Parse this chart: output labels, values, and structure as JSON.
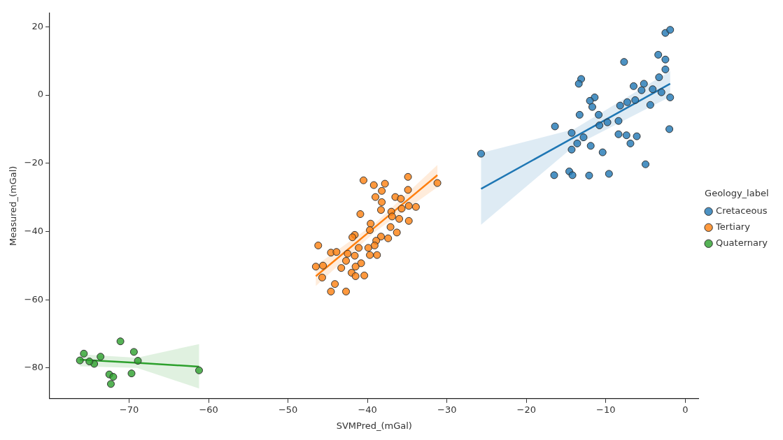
{
  "chart_data": {
    "type": "scatter",
    "xlabel": "SVMPred_(mGal)",
    "ylabel": "Measured_(mGal)",
    "legend_title": "Geology_label",
    "legend": "right",
    "grid": false,
    "marker": "circle",
    "xlim": [
      -80,
      1.7
    ],
    "xticks": [
      -70,
      -60,
      -50,
      -40,
      -30,
      -20,
      -10,
      0
    ],
    "ylim": [
      -89,
      24
    ],
    "yticks": [
      -80,
      -60,
      -40,
      -20,
      0,
      20
    ],
    "series": [
      {
        "name": "Cretaceous",
        "color": "#1f77b4",
        "x": [
          -25.7,
          -16.4,
          -16.5,
          -14.6,
          -14.2,
          -12.1,
          -9.6,
          -5.0,
          -2.0,
          -1.9,
          -7.7,
          -13.1,
          -13.4,
          -11.4,
          -12.0,
          -11.7,
          -13.3,
          -10.9,
          -14.3,
          -12.8,
          -13.6,
          -14.3,
          -11.9,
          -10.4,
          -10.8,
          -9.8,
          -8.4,
          -8.4,
          -7.4,
          -6.1,
          -6.9,
          -8.2,
          -7.3,
          -6.3,
          -4.4,
          -6.5,
          -5.2,
          -5.5,
          -4.1,
          -3.0,
          -3.3,
          -2.5,
          -3.4,
          -2.5,
          -2.5,
          -1.9
        ],
        "values": [
          -17.2,
          -9.2,
          -23.5,
          -22.4,
          -23.5,
          -23.6,
          -23.1,
          -20.3,
          -10.0,
          -0.7,
          9.7,
          4.7,
          3.3,
          -0.7,
          -1.7,
          -3.5,
          -5.8,
          -5.8,
          -11.1,
          -12.4,
          -14.2,
          -16.0,
          -14.9,
          -16.8,
          -8.9,
          -8.0,
          -7.6,
          -11.5,
          -11.8,
          -12.1,
          -14.2,
          -3.1,
          -2.1,
          -1.5,
          -2.9,
          2.6,
          3.3,
          1.4,
          1.7,
          0.8,
          5.2,
          7.5,
          11.8,
          10.4,
          18.2,
          19.1
        ]
      },
      {
        "name": "Tertiary",
        "color": "#ff7f0e",
        "x": [
          -40.5,
          -34.9,
          -39.2,
          -37.8,
          -38.2,
          -34.9,
          -31.2,
          -39.0,
          -38.2,
          -36.5,
          -35.8,
          -38.3,
          -37.0,
          -35.7,
          -34.8,
          -33.9,
          -40.9,
          -36.0,
          -34.8,
          -36.9,
          -39.6,
          -37.1,
          -36.3,
          -39.7,
          -41.6,
          -41.9,
          -37.4,
          -38.3,
          -38.9,
          -39.1,
          -39.9,
          -41.1,
          -46.2,
          -44.6,
          -43.9,
          -42.5,
          -41.6,
          -39.7,
          -38.8,
          -42.7,
          -40.8,
          -46.5,
          -45.6,
          -43.3,
          -41.5,
          -42.0,
          -41.5,
          -40.4,
          -45.7,
          -44.1,
          -44.6,
          -42.7
        ],
        "values": [
          -25.0,
          -24.0,
          -26.4,
          -26.0,
          -28.1,
          -27.8,
          -25.8,
          -29.9,
          -31.4,
          -29.9,
          -30.4,
          -33.7,
          -34.2,
          -33.3,
          -32.5,
          -32.8,
          -34.9,
          -36.3,
          -36.9,
          -35.6,
          -37.7,
          -38.7,
          -40.3,
          -39.6,
          -41.0,
          -41.7,
          -42.0,
          -41.5,
          -42.7,
          -44.1,
          -44.8,
          -44.8,
          -44.1,
          -46.2,
          -46.0,
          -46.5,
          -47.1,
          -46.9,
          -46.9,
          -48.6,
          -49.3,
          -50.3,
          -50.0,
          -50.7,
          -50.3,
          -52.1,
          -53.1,
          -52.9,
          -53.5,
          -55.4,
          -57.6,
          -57.6
        ]
      },
      {
        "name": "Quaternary",
        "color": "#2ca02c",
        "x": [
          -71.1,
          -69.4,
          -75.7,
          -73.6,
          -76.2,
          -74.4,
          -75.0,
          -68.9,
          -61.2,
          -69.7,
          -72.5,
          -72.0,
          -72.3
        ],
        "values": [
          -72.2,
          -75.3,
          -75.8,
          -76.7,
          -77.8,
          -78.8,
          -78.1,
          -77.9,
          -80.7,
          -81.6,
          -81.9,
          -82.6,
          -84.7
        ]
      },
      {
        "type": "line",
        "marker": "none",
        "color": "#1f77b4",
        "x": [
          -25.7,
          -14,
          -1.9
        ],
        "values": [
          -27.5,
          -12.4,
          3.3
        ],
        "lower": [
          -38,
          -15,
          -0.5
        ],
        "upper": [
          -17,
          -10,
          7
        ]
      },
      {
        "type": "line",
        "marker": "none",
        "color": "#ff7f0e",
        "x": [
          -46.5,
          -39,
          -31.2
        ],
        "values": [
          -53.1,
          -38.6,
          -23.5
        ],
        "lower": [
          -56,
          -40,
          -27
        ],
        "upper": [
          -50,
          -37.5,
          -20.5
        ]
      },
      {
        "type": "line",
        "marker": "none",
        "color": "#2ca02c",
        "x": [
          -76.2,
          -69,
          -61.2
        ],
        "values": [
          -77.6,
          -78.5,
          -79.6
        ],
        "lower": [
          -79.5,
          -80,
          -86
        ],
        "upper": [
          -76,
          -77,
          -73
        ]
      }
    ]
  }
}
